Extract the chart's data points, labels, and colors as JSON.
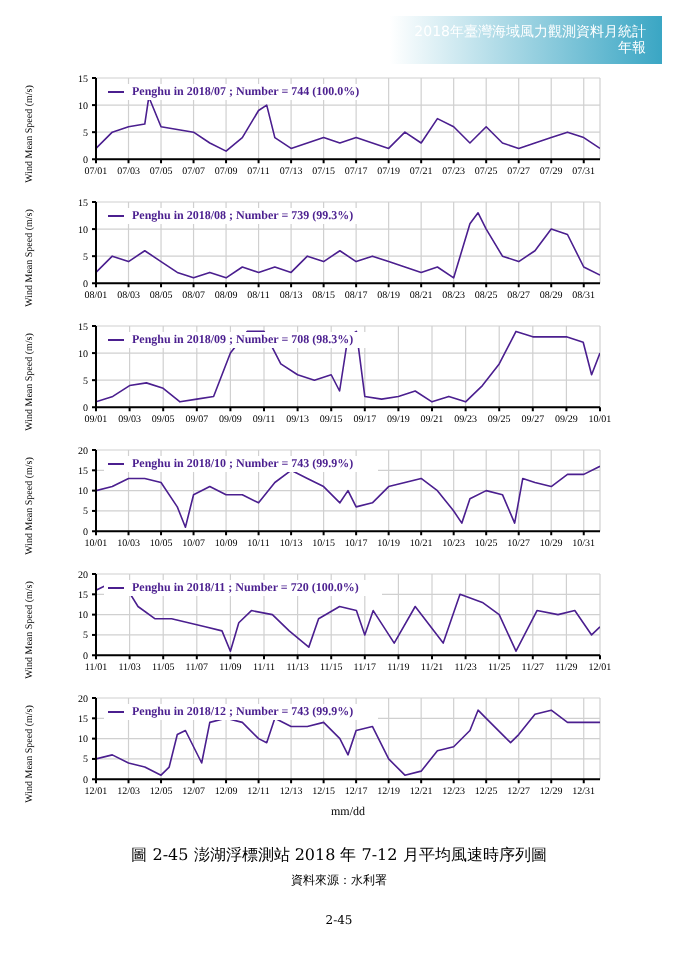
{
  "chart_data": [
    {
      "type": "line",
      "annotations": [
        "2018年臺灣海域風力觀測資料月統計年報"
      ],
      "ylabel": "Wind Mean Speed (m/s)",
      "xlim": [
        "2018-07-01",
        "2018-08-01"
      ],
      "ylim": [
        0,
        15
      ],
      "yticks": [
        0,
        5,
        10,
        15
      ],
      "xticks": [
        {
          "value": "2018-07-01",
          "label": "07/01"
        },
        {
          "value": "2018-07-03",
          "label": "07/03"
        },
        {
          "value": "2018-07-05",
          "label": "07/05"
        },
        {
          "value": "2018-07-07",
          "label": "07/07"
        },
        {
          "value": "2018-07-09",
          "label": "07/09"
        },
        {
          "value": "2018-07-11",
          "label": "07/11"
        },
        {
          "value": "2018-07-13",
          "label": "07/13"
        },
        {
          "value": "2018-07-15",
          "label": "07/15"
        },
        {
          "value": "2018-07-17",
          "label": "07/17"
        },
        {
          "value": "2018-07-19",
          "label": "07/19"
        },
        {
          "value": "2018-07-21",
          "label": "07/21"
        },
        {
          "value": "2018-07-23",
          "label": "07/23"
        },
        {
          "value": "2018-07-25",
          "label": "07/25"
        },
        {
          "value": "2018-07-27",
          "label": "07/27"
        },
        {
          "value": "2018-07-29",
          "label": "07/29"
        },
        {
          "value": "2018-07-31",
          "label": "07/31"
        }
      ],
      "grid": true,
      "legend": "top left",
      "line_style": "solid",
      "series": [
        {
          "name": "Penghu in 2018/07 ; Number = 744 (100.0%)",
          "color": "#4b1f8f",
          "x": [
            "2018-07-01T00:00",
            "2018-07-02T00:00",
            "2018-07-03T00:00",
            "2018-07-04T00:00",
            "2018-07-04T06:00",
            "2018-07-05T00:00",
            "2018-07-06T00:00",
            "2018-07-07T00:00",
            "2018-07-08T00:00",
            "2018-07-09T00:00",
            "2018-07-10T00:00",
            "2018-07-11T00:00",
            "2018-07-11T12:00",
            "2018-07-12T00:00",
            "2018-07-13T00:00",
            "2018-07-14T00:00",
            "2018-07-15T00:00",
            "2018-07-16T00:00",
            "2018-07-17T00:00",
            "2018-07-18T00:00",
            "2018-07-19T00:00",
            "2018-07-20T00:00",
            "2018-07-21T00:00",
            "2018-07-22T00:00",
            "2018-07-23T00:00",
            "2018-07-24T00:00",
            "2018-07-25T00:00",
            "2018-07-26T00:00",
            "2018-07-27T00:00",
            "2018-07-28T00:00",
            "2018-07-29T00:00",
            "2018-07-30T00:00",
            "2018-07-31T00:00",
            "2018-08-01T00:00"
          ],
          "values": [
            2,
            5,
            6,
            6.5,
            11.5,
            6,
            5.5,
            5,
            3,
            1.5,
            4,
            9,
            10,
            4,
            2,
            3,
            4,
            3,
            4,
            3,
            2,
            5,
            3,
            7.5,
            6,
            3,
            6,
            3,
            2,
            3,
            4,
            5,
            4,
            2
          ]
        }
      ]
    },
    {
      "type": "line",
      "ylabel": "Wind Mean Speed (m/s)",
      "xlim": [
        "2018-08-01",
        "2018-09-01"
      ],
      "ylim": [
        0,
        15
      ],
      "yticks": [
        0,
        5,
        10,
        15
      ],
      "xticks": [
        {
          "value": "2018-08-01",
          "label": "08/01"
        },
        {
          "value": "2018-08-03",
          "label": "08/03"
        },
        {
          "value": "2018-08-05",
          "label": "08/05"
        },
        {
          "value": "2018-08-07",
          "label": "08/07"
        },
        {
          "value": "2018-08-09",
          "label": "08/09"
        },
        {
          "value": "2018-08-11",
          "label": "08/11"
        },
        {
          "value": "2018-08-13",
          "label": "08/13"
        },
        {
          "value": "2018-08-15",
          "label": "08/15"
        },
        {
          "value": "2018-08-17",
          "label": "08/17"
        },
        {
          "value": "2018-08-19",
          "label": "08/19"
        },
        {
          "value": "2018-08-21",
          "label": "08/21"
        },
        {
          "value": "2018-08-23",
          "label": "08/23"
        },
        {
          "value": "2018-08-25",
          "label": "08/25"
        },
        {
          "value": "2018-08-27",
          "label": "08/27"
        },
        {
          "value": "2018-08-29",
          "label": "08/29"
        },
        {
          "value": "2018-08-31",
          "label": "08/31"
        }
      ],
      "grid": true,
      "legend": "top left",
      "line_style": "solid",
      "series": [
        {
          "name": "Penghu in 2018/08 ; Number = 739 (99.3%)",
          "color": "#4b1f8f",
          "x": [
            "2018-08-01T00:00",
            "2018-08-02T00:00",
            "2018-08-03T00:00",
            "2018-08-04T00:00",
            "2018-08-05T00:00",
            "2018-08-06T00:00",
            "2018-08-07T00:00",
            "2018-08-08T00:00",
            "2018-08-09T00:00",
            "2018-08-10T00:00",
            "2018-08-11T00:00",
            "2018-08-12T00:00",
            "2018-08-13T00:00",
            "2018-08-14T00:00",
            "2018-08-15T00:00",
            "2018-08-16T00:00",
            "2018-08-17T00:00",
            "2018-08-18T00:00",
            "2018-08-19T00:00",
            "2018-08-20T00:00",
            "2018-08-21T00:00",
            "2018-08-22T00:00",
            "2018-08-23T00:00",
            "2018-08-24T00:00",
            "2018-08-24T12:00",
            "2018-08-25T00:00",
            "2018-08-26T00:00",
            "2018-08-27T00:00",
            "2018-08-28T00:00",
            "2018-08-29T00:00",
            "2018-08-30T00:00",
            "2018-08-31T00:00",
            "2018-09-01T00:00"
          ],
          "values": [
            2,
            5,
            4,
            6,
            4,
            2,
            1,
            2,
            1,
            3,
            2,
            3,
            2,
            5,
            4,
            6,
            4,
            5,
            4,
            3,
            2,
            3,
            1,
            11,
            13,
            10,
            5,
            4,
            6,
            10,
            9,
            3,
            1.5
          ]
        }
      ]
    },
    {
      "type": "line",
      "ylabel": "Wind Mean Speed (m/s)",
      "xlim": [
        "2018-09-01",
        "2018-10-01"
      ],
      "ylim": [
        0,
        15
      ],
      "yticks": [
        0,
        5,
        10,
        15
      ],
      "xticks": [
        {
          "value": "2018-09-01",
          "label": "09/01"
        },
        {
          "value": "2018-09-03",
          "label": "09/03"
        },
        {
          "value": "2018-09-05",
          "label": "09/05"
        },
        {
          "value": "2018-09-07",
          "label": "09/07"
        },
        {
          "value": "2018-09-09",
          "label": "09/09"
        },
        {
          "value": "2018-09-11",
          "label": "09/11"
        },
        {
          "value": "2018-09-13",
          "label": "09/13"
        },
        {
          "value": "2018-09-15",
          "label": "09/15"
        },
        {
          "value": "2018-09-17",
          "label": "09/17"
        },
        {
          "value": "2018-09-19",
          "label": "09/19"
        },
        {
          "value": "2018-09-21",
          "label": "09/21"
        },
        {
          "value": "2018-09-23",
          "label": "09/23"
        },
        {
          "value": "2018-09-25",
          "label": "09/25"
        },
        {
          "value": "2018-09-27",
          "label": "09/27"
        },
        {
          "value": "2018-09-29",
          "label": "09/29"
        },
        {
          "value": "2018-10-01",
          "label": "10/01"
        }
      ],
      "grid": true,
      "legend": "top left",
      "line_style": "solid",
      "series": [
        {
          "name": "Penghu in 2018/09 ; Number = 708 (98.3%)",
          "color": "#4b1f8f",
          "x": [
            "2018-09-01T00:00",
            "2018-09-02T00:00",
            "2018-09-03T00:00",
            "2018-09-04T00:00",
            "2018-09-05T00:00",
            "2018-09-06T00:00",
            "2018-09-07T00:00",
            "2018-09-08T00:00",
            "2018-09-09T00:00",
            "2018-09-10T00:00",
            "2018-09-11T00:00",
            "2018-09-12T00:00",
            "2018-09-13T00:00",
            "2018-09-14T00:00",
            "2018-09-15T00:00",
            "2018-09-15T12:00",
            "2018-09-16T00:00",
            "2018-09-16T12:00",
            "2018-09-17T00:00",
            "2018-09-18T00:00",
            "2018-09-19T00:00",
            "2018-09-20T00:00",
            "2018-09-21T00:00",
            "2018-09-22T00:00",
            "2018-09-23T00:00",
            "2018-09-24T00:00",
            "2018-09-25T00:00",
            "2018-09-26T00:00",
            "2018-09-27T00:00",
            "2018-09-28T00:00",
            "2018-09-29T00:00",
            "2018-09-30T00:00",
            "2018-09-30T12:00",
            "2018-10-01T00:00"
          ],
          "values": [
            1,
            2,
            4,
            4.5,
            3.5,
            1,
            1.5,
            2,
            10,
            14,
            14,
            8,
            6,
            5,
            6,
            3,
            13,
            14,
            2,
            1.5,
            2,
            3,
            1,
            2,
            1,
            4,
            8,
            14,
            13,
            13,
            13,
            12,
            6,
            10
          ]
        }
      ]
    },
    {
      "type": "line",
      "ylabel": "Wind Mean Speed (m/s)",
      "xlim": [
        "2018-10-01",
        "2018-11-01"
      ],
      "ylim": [
        0,
        20
      ],
      "yticks": [
        0,
        5,
        10,
        15,
        20
      ],
      "xticks": [
        {
          "value": "2018-10-01",
          "label": "10/01"
        },
        {
          "value": "2018-10-03",
          "label": "10/03"
        },
        {
          "value": "2018-10-05",
          "label": "10/05"
        },
        {
          "value": "2018-10-07",
          "label": "10/07"
        },
        {
          "value": "2018-10-09",
          "label": "10/09"
        },
        {
          "value": "2018-10-11",
          "label": "10/11"
        },
        {
          "value": "2018-10-13",
          "label": "10/13"
        },
        {
          "value": "2018-10-15",
          "label": "10/15"
        },
        {
          "value": "2018-10-17",
          "label": "10/17"
        },
        {
          "value": "2018-10-19",
          "label": "10/19"
        },
        {
          "value": "2018-10-21",
          "label": "10/21"
        },
        {
          "value": "2018-10-23",
          "label": "10/23"
        },
        {
          "value": "2018-10-25",
          "label": "10/25"
        },
        {
          "value": "2018-10-27",
          "label": "10/27"
        },
        {
          "value": "2018-10-29",
          "label": "10/29"
        },
        {
          "value": "2018-10-31",
          "label": "10/31"
        }
      ],
      "grid": true,
      "legend": "top left",
      "line_style": "solid",
      "series": [
        {
          "name": "Penghu in 2018/10 ; Number = 743 (99.9%)",
          "color": "#4b1f8f",
          "x": [
            "2018-10-01T00:00",
            "2018-10-02T00:00",
            "2018-10-03T00:00",
            "2018-10-04T00:00",
            "2018-10-05T00:00",
            "2018-10-06T00:00",
            "2018-10-06T12:00",
            "2018-10-07T00:00",
            "2018-10-08T00:00",
            "2018-10-09T00:00",
            "2018-10-10T00:00",
            "2018-10-11T00:00",
            "2018-10-12T00:00",
            "2018-10-13T00:00",
            "2018-10-14T00:00",
            "2018-10-15T00:00",
            "2018-10-16T00:00",
            "2018-10-16T12:00",
            "2018-10-17T00:00",
            "2018-10-18T00:00",
            "2018-10-19T00:00",
            "2018-10-20T00:00",
            "2018-10-21T00:00",
            "2018-10-22T00:00",
            "2018-10-23T00:00",
            "2018-10-23T12:00",
            "2018-10-24T00:00",
            "2018-10-25T00:00",
            "2018-10-26T00:00",
            "2018-10-26T18:00",
            "2018-10-27T06:00",
            "2018-10-28T00:00",
            "2018-10-29T00:00",
            "2018-10-30T00:00",
            "2018-10-31T00:00",
            "2018-11-01T00:00"
          ],
          "values": [
            10,
            11,
            13,
            13,
            12,
            6,
            1,
            9,
            11,
            9,
            9,
            7,
            12,
            15,
            13,
            11,
            7,
            10,
            6,
            7,
            11,
            12,
            13,
            10,
            5,
            2,
            8,
            10,
            9,
            2,
            13,
            12,
            11,
            14,
            14,
            16
          ]
        }
      ]
    },
    {
      "type": "line",
      "ylabel": "Wind Mean Speed (m/s)",
      "xlim": [
        "2018-11-01",
        "2018-12-01"
      ],
      "ylim": [
        0,
        20
      ],
      "yticks": [
        0,
        5,
        10,
        15,
        20
      ],
      "xticks": [
        {
          "value": "2018-11-01",
          "label": "11/01"
        },
        {
          "value": "2018-11-03",
          "label": "11/03"
        },
        {
          "value": "2018-11-05",
          "label": "11/05"
        },
        {
          "value": "2018-11-07",
          "label": "11/07"
        },
        {
          "value": "2018-11-09",
          "label": "11/09"
        },
        {
          "value": "2018-11-11",
          "label": "11/11"
        },
        {
          "value": "2018-11-13",
          "label": "11/13"
        },
        {
          "value": "2018-11-15",
          "label": "11/15"
        },
        {
          "value": "2018-11-17",
          "label": "11/17"
        },
        {
          "value": "2018-11-19",
          "label": "11/19"
        },
        {
          "value": "2018-11-21",
          "label": "11/21"
        },
        {
          "value": "2018-11-23",
          "label": "11/23"
        },
        {
          "value": "2018-11-25",
          "label": "11/25"
        },
        {
          "value": "2018-11-27",
          "label": "11/27"
        },
        {
          "value": "2018-11-29",
          "label": "11/29"
        },
        {
          "value": "2018-12-01",
          "label": "12/01"
        }
      ],
      "grid": true,
      "legend": "top left",
      "line_style": "solid",
      "series": [
        {
          "name": "Penghu in 2018/11 ; Number = 720 (100.0%)",
          "color": "#4b1f8f",
          "x": [
            "2018-11-01T00:00",
            "2018-11-02T00:00",
            "2018-11-02T18:00",
            "2018-11-03T12:00",
            "2018-11-04T12:00",
            "2018-11-05T12:00",
            "2018-11-06T12:00",
            "2018-11-07T12:00",
            "2018-11-08T12:00",
            "2018-11-09T00:00",
            "2018-11-09T12:00",
            "2018-11-10T06:00",
            "2018-11-11T12:00",
            "2018-11-12T12:00",
            "2018-11-13T16:00",
            "2018-11-14T06:00",
            "2018-11-15T12:00",
            "2018-11-16T12:00",
            "2018-11-17T00:00",
            "2018-11-17T12:00",
            "2018-11-18T18:00",
            "2018-11-20T00:00",
            "2018-11-21T16:00",
            "2018-11-22T16:00",
            "2018-11-24T00:00",
            "2018-11-25T00:00",
            "2018-11-26T00:00",
            "2018-11-27T06:00",
            "2018-11-28T12:00",
            "2018-11-29T12:00",
            "2018-11-30T12:00",
            "2018-12-01T00:00"
          ],
          "values": [
            16,
            18,
            17,
            12,
            9,
            9,
            8,
            7,
            6,
            1,
            8,
            11,
            10,
            6,
            2,
            9,
            12,
            11,
            5,
            11,
            3,
            12,
            3,
            15,
            13,
            10,
            1,
            11,
            10,
            11,
            5,
            7
          ]
        }
      ]
    },
    {
      "type": "line",
      "ylabel": "Wind Mean Speed (m/s)",
      "xlabel": "mm/dd",
      "xlim": [
        "2018-12-01",
        "2019-01-01"
      ],
      "ylim": [
        0,
        20
      ],
      "yticks": [
        0,
        5,
        10,
        15,
        20
      ],
      "xticks": [
        {
          "value": "2018-12-01",
          "label": "12/01"
        },
        {
          "value": "2018-12-03",
          "label": "12/03"
        },
        {
          "value": "2018-12-05",
          "label": "12/05"
        },
        {
          "value": "2018-12-07",
          "label": "12/07"
        },
        {
          "value": "2018-12-09",
          "label": "12/09"
        },
        {
          "value": "2018-12-11",
          "label": "12/11"
        },
        {
          "value": "2018-12-13",
          "label": "12/13"
        },
        {
          "value": "2018-12-15",
          "label": "12/15"
        },
        {
          "value": "2018-12-17",
          "label": "12/17"
        },
        {
          "value": "2018-12-19",
          "label": "12/19"
        },
        {
          "value": "2018-12-21",
          "label": "12/21"
        },
        {
          "value": "2018-12-23",
          "label": "12/23"
        },
        {
          "value": "2018-12-25",
          "label": "12/25"
        },
        {
          "value": "2018-12-27",
          "label": "12/27"
        },
        {
          "value": "2018-12-29",
          "label": "12/29"
        },
        {
          "value": "2018-12-31",
          "label": "12/31"
        }
      ],
      "grid": true,
      "legend": "top left",
      "line_style": "solid",
      "annotations": [
        "圖 2-45 澎湖浮標測站 2018 年 7-12 月平均風速時序列圖",
        "資料來源：水利署",
        "2-45"
      ],
      "series": [
        {
          "name": "Penghu in 2018/12 ; Number = 743 (99.9%)",
          "color": "#4b1f8f",
          "x": [
            "2018-12-01T00:00",
            "2018-12-02T00:00",
            "2018-12-03T00:00",
            "2018-12-04T00:00",
            "2018-12-05T00:00",
            "2018-12-05T12:00",
            "2018-12-06T00:00",
            "2018-12-06T12:00",
            "2018-12-07T00:00",
            "2018-12-07T12:00",
            "2018-12-08T00:00",
            "2018-12-09T00:00",
            "2018-12-10T00:00",
            "2018-12-11T00:00",
            "2018-12-11T12:00",
            "2018-12-12T00:00",
            "2018-12-13T00:00",
            "2018-12-14T00:00",
            "2018-12-15T00:00",
            "2018-12-16T00:00",
            "2018-12-16T12:00",
            "2018-12-17T00:00",
            "2018-12-18T00:00",
            "2018-12-19T00:00",
            "2018-12-20T00:00",
            "2018-12-21T00:00",
            "2018-12-22T00:00",
            "2018-12-23T00:00",
            "2018-12-24T00:00",
            "2018-12-24T12:00",
            "2018-12-25T00:00",
            "2018-12-26T00:00",
            "2018-12-26T12:00",
            "2018-12-27T00:00",
            "2018-12-28T00:00",
            "2018-12-29T00:00",
            "2018-12-30T00:00",
            "2018-12-31T00:00",
            "2019-01-01T00:00"
          ],
          "values": [
            5,
            6,
            4,
            3,
            1,
            3,
            11,
            12,
            8,
            4,
            14,
            15,
            14,
            10,
            9,
            15,
            13,
            13,
            14,
            10,
            6,
            12,
            13,
            5,
            1,
            2,
            7,
            8,
            12,
            17,
            15,
            11,
            9,
            11,
            16,
            17,
            14,
            14,
            14
          ]
        }
      ]
    }
  ]
}
